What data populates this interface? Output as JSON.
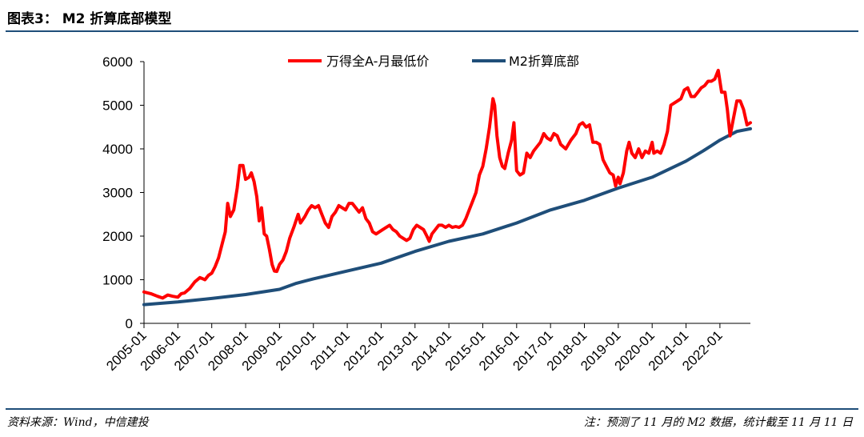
{
  "figure": {
    "title": "图表3： M2 折算底部模型",
    "source": "资料来源：Wind，中信建投",
    "note": "注：预测了 11 月的 M2 数据，统计截至 11 月 11 日",
    "accent_color": "#1f4e79"
  },
  "chart_data": {
    "type": "line",
    "title": "",
    "xlabel": "",
    "ylabel": "",
    "ylim": [
      0,
      6000
    ],
    "yticks": [
      "0",
      "1000",
      "2000",
      "3000",
      "4000",
      "5000",
      "6000"
    ],
    "xticks": [
      "2005-01",
      "2006-01",
      "2007-01",
      "2008-01",
      "2009-01",
      "2010-01",
      "2011-01",
      "2012-01",
      "2013-01",
      "2014-01",
      "2015-01",
      "2016-01",
      "2017-01",
      "2018-01",
      "2019-01",
      "2020-01",
      "2021-01",
      "2022-01"
    ],
    "x_range": [
      2005.0,
      2022.9
    ],
    "legend_position": "top-center",
    "series": [
      {
        "name": "万得全A-月最低价",
        "color": "#ff0000",
        "points": [
          [
            2005.0,
            720
          ],
          [
            2005.2,
            680
          ],
          [
            2005.4,
            620
          ],
          [
            2005.55,
            580
          ],
          [
            2005.7,
            650
          ],
          [
            2005.85,
            620
          ],
          [
            2006.0,
            600
          ],
          [
            2006.1,
            680
          ],
          [
            2006.2,
            700
          ],
          [
            2006.35,
            800
          ],
          [
            2006.5,
            950
          ],
          [
            2006.65,
            1050
          ],
          [
            2006.8,
            1000
          ],
          [
            2006.9,
            1100
          ],
          [
            2007.0,
            1150
          ],
          [
            2007.1,
            1300
          ],
          [
            2007.2,
            1500
          ],
          [
            2007.3,
            1800
          ],
          [
            2007.4,
            2100
          ],
          [
            2007.47,
            2750
          ],
          [
            2007.55,
            2450
          ],
          [
            2007.65,
            2600
          ],
          [
            2007.75,
            3100
          ],
          [
            2007.83,
            3620
          ],
          [
            2007.92,
            3620
          ],
          [
            2008.0,
            3300
          ],
          [
            2008.1,
            3350
          ],
          [
            2008.17,
            3450
          ],
          [
            2008.25,
            3250
          ],
          [
            2008.33,
            2900
          ],
          [
            2008.4,
            2350
          ],
          [
            2008.47,
            2650
          ],
          [
            2008.55,
            2050
          ],
          [
            2008.62,
            2000
          ],
          [
            2008.7,
            1700
          ],
          [
            2008.78,
            1350
          ],
          [
            2008.85,
            1200
          ],
          [
            2008.92,
            1190
          ],
          [
            2009.0,
            1350
          ],
          [
            2009.1,
            1450
          ],
          [
            2009.2,
            1650
          ],
          [
            2009.3,
            1950
          ],
          [
            2009.42,
            2200
          ],
          [
            2009.55,
            2500
          ],
          [
            2009.62,
            2300
          ],
          [
            2009.75,
            2450
          ],
          [
            2009.85,
            2600
          ],
          [
            2009.95,
            2700
          ],
          [
            2010.05,
            2650
          ],
          [
            2010.15,
            2700
          ],
          [
            2010.25,
            2500
          ],
          [
            2010.35,
            2300
          ],
          [
            2010.45,
            2200
          ],
          [
            2010.55,
            2450
          ],
          [
            2010.65,
            2550
          ],
          [
            2010.75,
            2700
          ],
          [
            2010.85,
            2650
          ],
          [
            2010.95,
            2600
          ],
          [
            2011.05,
            2750
          ],
          [
            2011.15,
            2750
          ],
          [
            2011.25,
            2650
          ],
          [
            2011.35,
            2550
          ],
          [
            2011.45,
            2650
          ],
          [
            2011.55,
            2400
          ],
          [
            2011.65,
            2300
          ],
          [
            2011.75,
            2100
          ],
          [
            2011.85,
            2050
          ],
          [
            2011.95,
            2100
          ],
          [
            2012.05,
            2150
          ],
          [
            2012.15,
            2200
          ],
          [
            2012.25,
            2250
          ],
          [
            2012.35,
            2150
          ],
          [
            2012.45,
            2100
          ],
          [
            2012.55,
            2000
          ],
          [
            2012.65,
            1950
          ],
          [
            2012.75,
            1900
          ],
          [
            2012.85,
            1950
          ],
          [
            2012.95,
            2150
          ],
          [
            2013.05,
            2250
          ],
          [
            2013.15,
            2200
          ],
          [
            2013.25,
            2150
          ],
          [
            2013.35,
            2000
          ],
          [
            2013.42,
            1880
          ],
          [
            2013.5,
            2050
          ],
          [
            2013.6,
            2150
          ],
          [
            2013.7,
            2250
          ],
          [
            2013.8,
            2250
          ],
          [
            2013.9,
            2200
          ],
          [
            2014.0,
            2250
          ],
          [
            2014.1,
            2200
          ],
          [
            2014.2,
            2220
          ],
          [
            2014.3,
            2200
          ],
          [
            2014.4,
            2250
          ],
          [
            2014.5,
            2400
          ],
          [
            2014.6,
            2600
          ],
          [
            2014.7,
            2800
          ],
          [
            2014.8,
            3000
          ],
          [
            2014.9,
            3400
          ],
          [
            2015.0,
            3600
          ],
          [
            2015.1,
            4000
          ],
          [
            2015.2,
            4500
          ],
          [
            2015.3,
            5150
          ],
          [
            2015.35,
            5000
          ],
          [
            2015.42,
            4300
          ],
          [
            2015.5,
            3800
          ],
          [
            2015.58,
            3600
          ],
          [
            2015.65,
            3550
          ],
          [
            2015.75,
            3900
          ],
          [
            2015.85,
            4200
          ],
          [
            2015.92,
            4600
          ],
          [
            2016.0,
            3500
          ],
          [
            2016.1,
            3400
          ],
          [
            2016.2,
            3450
          ],
          [
            2016.3,
            3900
          ],
          [
            2016.4,
            3800
          ],
          [
            2016.5,
            3950
          ],
          [
            2016.6,
            4050
          ],
          [
            2016.7,
            4150
          ],
          [
            2016.8,
            4350
          ],
          [
            2016.9,
            4250
          ],
          [
            2017.0,
            4200
          ],
          [
            2017.1,
            4350
          ],
          [
            2017.2,
            4300
          ],
          [
            2017.3,
            4100
          ],
          [
            2017.45,
            4000
          ],
          [
            2017.6,
            4200
          ],
          [
            2017.75,
            4350
          ],
          [
            2017.85,
            4550
          ],
          [
            2017.95,
            4600
          ],
          [
            2018.05,
            4500
          ],
          [
            2018.15,
            4550
          ],
          [
            2018.25,
            4150
          ],
          [
            2018.35,
            4150
          ],
          [
            2018.45,
            4100
          ],
          [
            2018.55,
            3750
          ],
          [
            2018.65,
            3600
          ],
          [
            2018.75,
            3450
          ],
          [
            2018.85,
            3400
          ],
          [
            2018.92,
            3150
          ],
          [
            2019.0,
            3350
          ],
          [
            2019.05,
            3200
          ],
          [
            2019.15,
            3450
          ],
          [
            2019.25,
            3950
          ],
          [
            2019.32,
            4150
          ],
          [
            2019.4,
            3900
          ],
          [
            2019.5,
            3800
          ],
          [
            2019.6,
            4000
          ],
          [
            2019.7,
            3800
          ],
          [
            2019.8,
            3950
          ],
          [
            2019.9,
            3900
          ],
          [
            2020.0,
            4150
          ],
          [
            2020.05,
            3900
          ],
          [
            2020.15,
            3950
          ],
          [
            2020.25,
            3900
          ],
          [
            2020.35,
            4100
          ],
          [
            2020.45,
            4400
          ],
          [
            2020.55,
            5000
          ],
          [
            2020.65,
            5050
          ],
          [
            2020.75,
            5100
          ],
          [
            2020.85,
            5150
          ],
          [
            2020.95,
            5350
          ],
          [
            2021.05,
            5400
          ],
          [
            2021.15,
            5200
          ],
          [
            2021.25,
            5200
          ],
          [
            2021.35,
            5300
          ],
          [
            2021.45,
            5400
          ],
          [
            2021.55,
            5450
          ],
          [
            2021.65,
            5550
          ],
          [
            2021.75,
            5550
          ],
          [
            2021.85,
            5600
          ],
          [
            2021.95,
            5800
          ],
          [
            2022.05,
            5300
          ],
          [
            2022.15,
            5300
          ],
          [
            2022.22,
            4900
          ],
          [
            2022.3,
            4300
          ],
          [
            2022.4,
            4700
          ],
          [
            2022.5,
            5100
          ],
          [
            2022.6,
            5100
          ],
          [
            2022.7,
            4900
          ],
          [
            2022.8,
            4550
          ],
          [
            2022.9,
            4600
          ]
        ]
      },
      {
        "name": "M2折算底部",
        "color": "#1f4e79",
        "points": [
          [
            2005.0,
            430
          ],
          [
            2006.0,
            490
          ],
          [
            2007.0,
            570
          ],
          [
            2008.0,
            660
          ],
          [
            2009.0,
            780
          ],
          [
            2009.5,
            920
          ],
          [
            2010.0,
            1020
          ],
          [
            2011.0,
            1200
          ],
          [
            2012.0,
            1380
          ],
          [
            2013.0,
            1650
          ],
          [
            2014.0,
            1880
          ],
          [
            2015.0,
            2050
          ],
          [
            2016.0,
            2300
          ],
          [
            2017.0,
            2600
          ],
          [
            2018.0,
            2820
          ],
          [
            2019.0,
            3100
          ],
          [
            2020.0,
            3350
          ],
          [
            2021.0,
            3720
          ],
          [
            2021.5,
            3950
          ],
          [
            2022.0,
            4200
          ],
          [
            2022.5,
            4400
          ],
          [
            2022.9,
            4460
          ]
        ]
      }
    ]
  }
}
